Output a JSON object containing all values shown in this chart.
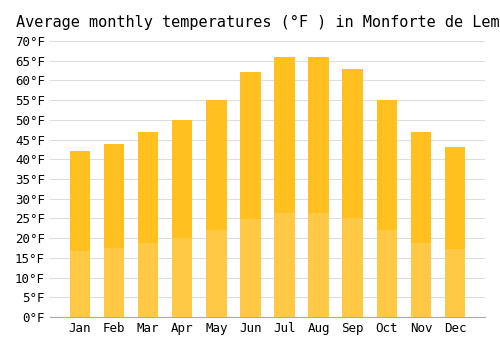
{
  "title": "Average monthly temperatures (°F ) in Monforte de Lemos",
  "months": [
    "Jan",
    "Feb",
    "Mar",
    "Apr",
    "May",
    "Jun",
    "Jul",
    "Aug",
    "Sep",
    "Oct",
    "Nov",
    "Dec"
  ],
  "values": [
    42,
    44,
    47,
    50,
    55,
    62,
    66,
    66,
    63,
    55,
    47,
    43
  ],
  "bar_color_top": "#FFC020",
  "bar_color_bottom": "#FFD060",
  "ylim": [
    0,
    70
  ],
  "yticks": [
    0,
    5,
    10,
    15,
    20,
    25,
    30,
    35,
    40,
    45,
    50,
    55,
    60,
    65,
    70
  ],
  "background_color": "#FFFFFF",
  "grid_color": "#DDDDDD",
  "title_fontsize": 11,
  "tick_fontsize": 9,
  "font_family": "monospace"
}
